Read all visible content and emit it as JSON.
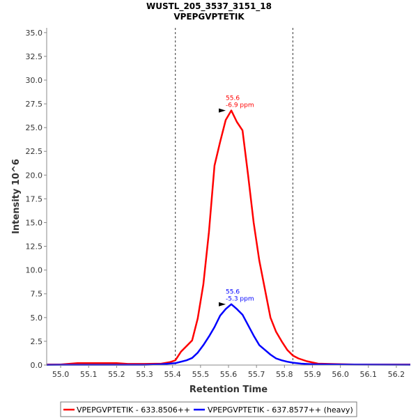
{
  "chart_data": {
    "type": "line",
    "title": "WUSTL_205_3537_3151_18",
    "subtitle": "VPEPGVPTETIK",
    "xlabel": "Retention Time",
    "ylabel": "Intensity 10^6",
    "xlim": [
      54.95,
      56.25
    ],
    "ylim": [
      0,
      35.5
    ],
    "x_ticks": [
      "55.0",
      "55.1",
      "55.2",
      "55.3",
      "55.4",
      "55.5",
      "55.6",
      "55.7",
      "55.8",
      "55.9",
      "56.0",
      "56.1",
      "56.2"
    ],
    "y_ticks": [
      "0.0",
      "2.5",
      "5.0",
      "7.5",
      "10.0",
      "12.5",
      "15.0",
      "17.5",
      "20.0",
      "22.5",
      "25.0",
      "27.5",
      "30.0",
      "32.5",
      "35.0"
    ],
    "grid": false,
    "legend_position": "bottom",
    "boundaries": [
      55.41,
      55.83
    ],
    "series": [
      {
        "name": "VPEPGVPTETIK - 633.8506++",
        "color": "#ff0000",
        "x": [
          54.95,
          55.0,
          55.06,
          55.2,
          55.24,
          55.3,
          55.36,
          55.39,
          55.41,
          55.43,
          55.45,
          55.47,
          55.49,
          55.51,
          55.53,
          55.55,
          55.57,
          55.59,
          55.61,
          55.63,
          55.65,
          55.67,
          55.69,
          55.71,
          55.73,
          55.75,
          55.77,
          55.79,
          55.81,
          55.83,
          55.85,
          55.88,
          55.92,
          55.98,
          56.05,
          56.25
        ],
        "y": [
          0.05,
          0.05,
          0.2,
          0.2,
          0.12,
          0.12,
          0.15,
          0.3,
          0.5,
          1.4,
          2.0,
          2.6,
          4.9,
          8.5,
          14.0,
          21.0,
          23.5,
          25.8,
          26.8,
          25.6,
          24.7,
          20.0,
          15.0,
          11.0,
          8.0,
          5.0,
          3.5,
          2.5,
          1.6,
          1.0,
          0.7,
          0.4,
          0.15,
          0.1,
          0.05,
          0.05
        ]
      },
      {
        "name": "VPEPGVPTETIK - 637.8577++ (heavy)",
        "color": "#0000ff",
        "x": [
          54.95,
          55.0,
          55.3,
          55.36,
          55.41,
          55.45,
          55.47,
          55.49,
          55.51,
          55.53,
          55.55,
          55.57,
          55.59,
          55.61,
          55.63,
          55.65,
          55.67,
          55.69,
          55.71,
          55.73,
          55.75,
          55.77,
          55.79,
          55.81,
          55.83,
          55.86,
          55.9,
          56.0,
          56.25
        ],
        "y": [
          0.02,
          0.03,
          0.03,
          0.08,
          0.2,
          0.5,
          0.75,
          1.3,
          2.1,
          3.0,
          4.0,
          5.2,
          5.9,
          6.4,
          5.9,
          5.3,
          4.2,
          3.1,
          2.1,
          1.6,
          1.1,
          0.7,
          0.5,
          0.35,
          0.25,
          0.15,
          0.08,
          0.05,
          0.03
        ]
      }
    ],
    "annotations": [
      {
        "series": 0,
        "x": 55.6,
        "y": 26.8,
        "label_rt": "55.6",
        "label_ppm": "-6.9 ppm"
      },
      {
        "series": 1,
        "x": 55.6,
        "y": 6.4,
        "label_rt": "55.6",
        "label_ppm": "-5.3 ppm"
      }
    ]
  }
}
